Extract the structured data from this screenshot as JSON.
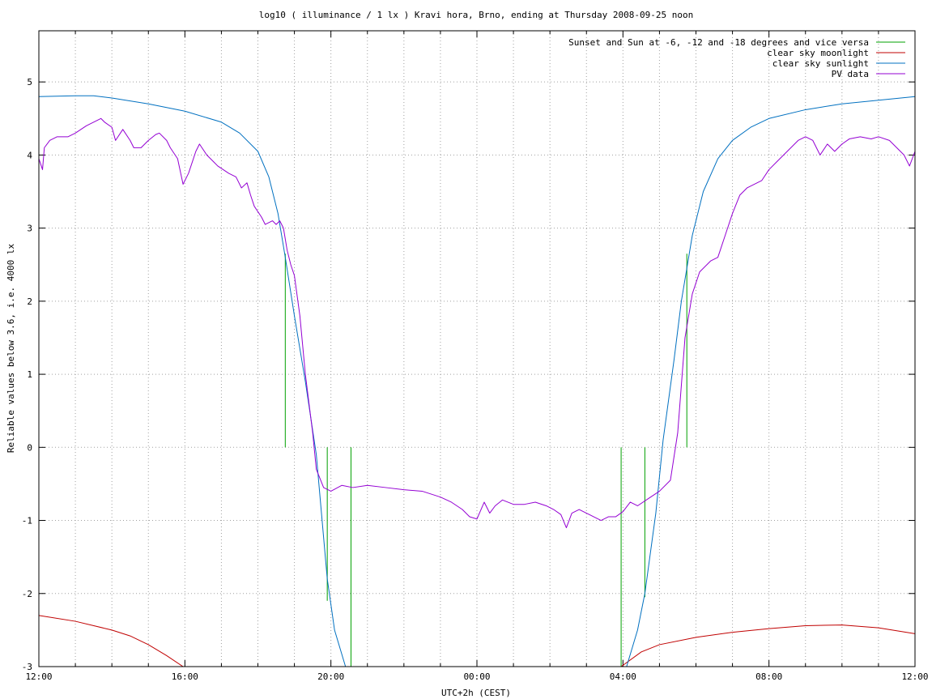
{
  "chart_data": {
    "type": "line",
    "title": "log10 ( illuminance / 1 lx ) Kravi hora, Brno, ending at Thursday 2008-09-25 noon",
    "xlabel": "UTC+2h (CEST)",
    "ylabel": "Reliable values below 3.6, i.e. 4000 lx",
    "xlim": [
      0,
      24
    ],
    "ylim": [
      -3,
      5.7
    ],
    "x_ticks": [
      {
        "x": 0,
        "label": "12:00"
      },
      {
        "x": 4,
        "label": "16:00"
      },
      {
        "x": 8,
        "label": "20:00"
      },
      {
        "x": 12,
        "label": "00:00"
      },
      {
        "x": 16,
        "label": "04:00"
      },
      {
        "x": 20,
        "label": "08:00"
      },
      {
        "x": 24,
        "label": "12:00"
      }
    ],
    "x_minor_step": 1,
    "y_ticks": [
      -3,
      -2,
      -1,
      0,
      1,
      2,
      3,
      4,
      5
    ],
    "grid": true,
    "legend_position": "top-right",
    "series": [
      {
        "name": "Sunset and Sun at -6, -12 and -18 degrees and vice versa",
        "color": "#00a000",
        "style": "impulses",
        "impulses": [
          {
            "x": 6.75,
            "y0": 0,
            "y1": 2.65
          },
          {
            "x": 7.9,
            "y0": -2.1,
            "y1": 0
          },
          {
            "x": 8.55,
            "y0": -3,
            "y1": 0
          },
          {
            "x": 15.95,
            "y0": -3,
            "y1": 0
          },
          {
            "x": 16.6,
            "y0": -2.05,
            "y1": 0
          },
          {
            "x": 17.75,
            "y0": 0,
            "y1": 2.65
          }
        ]
      },
      {
        "name": "clear sky moonlight",
        "color": "#c00000",
        "segments": [
          [
            [
              0,
              -2.3
            ],
            [
              1,
              -2.38
            ],
            [
              2,
              -2.5
            ],
            [
              2.5,
              -2.58
            ],
            [
              3,
              -2.7
            ],
            [
              3.5,
              -2.85
            ],
            [
              3.95,
              -3
            ]
          ],
          [
            [
              15.95,
              -3
            ],
            [
              16.5,
              -2.8
            ],
            [
              17,
              -2.7
            ],
            [
              18,
              -2.6
            ],
            [
              19,
              -2.53
            ],
            [
              20,
              -2.48
            ],
            [
              21,
              -2.44
            ],
            [
              22,
              -2.43
            ],
            [
              23,
              -2.47
            ],
            [
              24,
              -2.55
            ]
          ]
        ]
      },
      {
        "name": "clear sky sunlight",
        "color": "#0070c0",
        "points": [
          [
            0,
            4.8
          ],
          [
            1,
            4.81
          ],
          [
            1.5,
            4.81
          ],
          [
            2,
            4.78
          ],
          [
            3,
            4.7
          ],
          [
            4,
            4.6
          ],
          [
            5,
            4.45
          ],
          [
            5.5,
            4.3
          ],
          [
            6,
            4.05
          ],
          [
            6.3,
            3.7
          ],
          [
            6.55,
            3.2
          ],
          [
            6.75,
            2.6
          ],
          [
            7,
            1.8
          ],
          [
            7.3,
            0.9
          ],
          [
            7.6,
            -0.1
          ],
          [
            7.9,
            -1.8
          ],
          [
            8.1,
            -2.5
          ],
          [
            8.4,
            -3
          ],
          [
            16.1,
            -3
          ],
          [
            16.4,
            -2.5
          ],
          [
            16.6,
            -2.0
          ],
          [
            16.9,
            -0.9
          ],
          [
            17.1,
            0.1
          ],
          [
            17.4,
            1.2
          ],
          [
            17.6,
            2.0
          ],
          [
            17.9,
            2.9
          ],
          [
            18.2,
            3.5
          ],
          [
            18.6,
            3.95
          ],
          [
            19,
            4.2
          ],
          [
            19.5,
            4.38
          ],
          [
            20,
            4.5
          ],
          [
            21,
            4.62
          ],
          [
            22,
            4.7
          ],
          [
            23,
            4.75
          ],
          [
            24,
            4.8
          ]
        ]
      },
      {
        "name": "PV data",
        "color": "#9400d3",
        "points": [
          [
            0,
            3.95
          ],
          [
            0.1,
            3.8
          ],
          [
            0.15,
            4.1
          ],
          [
            0.3,
            4.2
          ],
          [
            0.5,
            4.25
          ],
          [
            0.8,
            4.25
          ],
          [
            1.0,
            4.3
          ],
          [
            1.3,
            4.4
          ],
          [
            1.5,
            4.45
          ],
          [
            1.7,
            4.5
          ],
          [
            1.8,
            4.45
          ],
          [
            2.0,
            4.38
          ],
          [
            2.1,
            4.2
          ],
          [
            2.3,
            4.35
          ],
          [
            2.5,
            4.2
          ],
          [
            2.6,
            4.1
          ],
          [
            2.8,
            4.1
          ],
          [
            3.0,
            4.2
          ],
          [
            3.2,
            4.28
          ],
          [
            3.3,
            4.3
          ],
          [
            3.5,
            4.2
          ],
          [
            3.6,
            4.1
          ],
          [
            3.8,
            3.95
          ],
          [
            3.95,
            3.6
          ],
          [
            4.1,
            3.75
          ],
          [
            4.3,
            4.05
          ],
          [
            4.4,
            4.15
          ],
          [
            4.6,
            4.0
          ],
          [
            4.8,
            3.9
          ],
          [
            4.9,
            3.85
          ],
          [
            5.2,
            3.75
          ],
          [
            5.4,
            3.7
          ],
          [
            5.55,
            3.55
          ],
          [
            5.7,
            3.62
          ],
          [
            5.8,
            3.45
          ],
          [
            5.9,
            3.3
          ],
          [
            6.1,
            3.15
          ],
          [
            6.2,
            3.05
          ],
          [
            6.4,
            3.1
          ],
          [
            6.5,
            3.05
          ],
          [
            6.6,
            3.1
          ],
          [
            6.7,
            3.0
          ],
          [
            6.8,
            2.7
          ],
          [
            6.9,
            2.5
          ],
          [
            7.0,
            2.35
          ],
          [
            7.15,
            1.8
          ],
          [
            7.3,
            1.0
          ],
          [
            7.5,
            0.2
          ],
          [
            7.6,
            -0.3
          ],
          [
            7.8,
            -0.55
          ],
          [
            8.0,
            -0.6
          ],
          [
            8.3,
            -0.52
          ],
          [
            8.6,
            -0.55
          ],
          [
            9.0,
            -0.52
          ],
          [
            9.5,
            -0.55
          ],
          [
            10.0,
            -0.58
          ],
          [
            10.5,
            -0.6
          ],
          [
            11.0,
            -0.68
          ],
          [
            11.3,
            -0.75
          ],
          [
            11.6,
            -0.85
          ],
          [
            11.8,
            -0.95
          ],
          [
            12.0,
            -0.98
          ],
          [
            12.2,
            -0.75
          ],
          [
            12.35,
            -0.9
          ],
          [
            12.5,
            -0.8
          ],
          [
            12.7,
            -0.72
          ],
          [
            13.0,
            -0.78
          ],
          [
            13.3,
            -0.78
          ],
          [
            13.6,
            -0.75
          ],
          [
            13.9,
            -0.8
          ],
          [
            14.1,
            -0.85
          ],
          [
            14.3,
            -0.92
          ],
          [
            14.45,
            -1.1
          ],
          [
            14.6,
            -0.9
          ],
          [
            14.8,
            -0.85
          ],
          [
            15.0,
            -0.9
          ],
          [
            15.2,
            -0.95
          ],
          [
            15.4,
            -1.0
          ],
          [
            15.6,
            -0.95
          ],
          [
            15.8,
            -0.95
          ],
          [
            16.0,
            -0.88
          ],
          [
            16.2,
            -0.75
          ],
          [
            16.4,
            -0.8
          ],
          [
            16.7,
            -0.7
          ],
          [
            17.0,
            -0.6
          ],
          [
            17.3,
            -0.45
          ],
          [
            17.5,
            0.2
          ],
          [
            17.7,
            1.5
          ],
          [
            17.9,
            2.1
          ],
          [
            18.1,
            2.4
          ],
          [
            18.4,
            2.55
          ],
          [
            18.6,
            2.6
          ],
          [
            18.8,
            2.9
          ],
          [
            19.0,
            3.2
          ],
          [
            19.2,
            3.45
          ],
          [
            19.4,
            3.55
          ],
          [
            19.6,
            3.6
          ],
          [
            19.8,
            3.65
          ],
          [
            20.0,
            3.8
          ],
          [
            20.2,
            3.9
          ],
          [
            20.4,
            4.0
          ],
          [
            20.6,
            4.1
          ],
          [
            20.8,
            4.2
          ],
          [
            21.0,
            4.25
          ],
          [
            21.2,
            4.2
          ],
          [
            21.4,
            4.0
          ],
          [
            21.6,
            4.15
          ],
          [
            21.8,
            4.05
          ],
          [
            22.0,
            4.15
          ],
          [
            22.2,
            4.22
          ],
          [
            22.5,
            4.25
          ],
          [
            22.8,
            4.22
          ],
          [
            23.0,
            4.25
          ],
          [
            23.3,
            4.2
          ],
          [
            23.5,
            4.1
          ],
          [
            23.7,
            4.0
          ],
          [
            23.85,
            3.85
          ],
          [
            24.0,
            4.05
          ]
        ]
      }
    ]
  }
}
